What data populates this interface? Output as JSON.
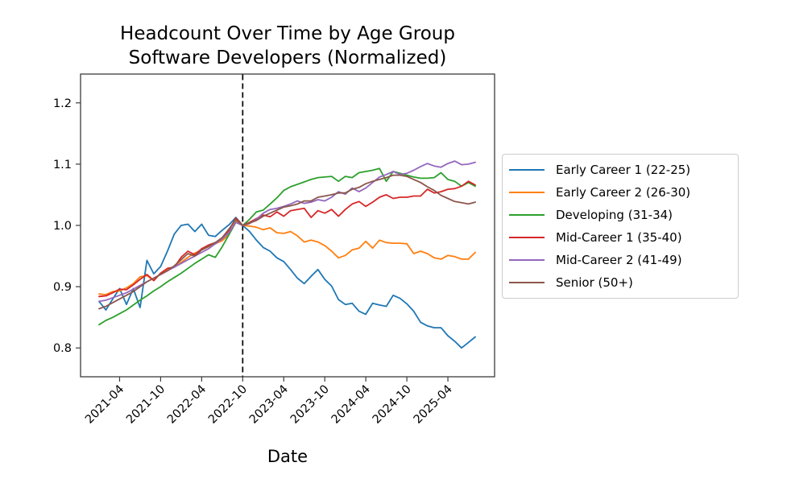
{
  "figure": {
    "title_line1": "Headcount Over Time by Age Group",
    "title_line2": "Software Developers (Normalized)",
    "xlabel": "Date"
  },
  "chart_data": {
    "type": "line",
    "title": "Headcount Over Time by Age Group — Software Developers (Normalized)",
    "xlabel": "Date",
    "ylabel": "",
    "grid": false,
    "legend_position": "center right",
    "ylim": [
      0.753,
      1.247
    ],
    "yticks": [
      0.8,
      0.9,
      1.0,
      1.1,
      1.2
    ],
    "ytick_labels": [
      "0.8",
      "0.9",
      "1.0",
      "1.1",
      "1.2"
    ],
    "xtick_labels": [
      "2021-04",
      "2021-10",
      "2022-04",
      "2022-10",
      "2023-04",
      "2023-10",
      "2024-04",
      "2024-10",
      "2025-04"
    ],
    "vline": {
      "month": "2022-10",
      "style": "dashed",
      "color": "#000000"
    },
    "x": [
      "2021-01",
      "2021-02",
      "2021-03",
      "2021-04",
      "2021-05",
      "2021-06",
      "2021-07",
      "2021-08",
      "2021-09",
      "2021-10",
      "2021-11",
      "2021-12",
      "2022-01",
      "2022-02",
      "2022-03",
      "2022-04",
      "2022-05",
      "2022-06",
      "2022-07",
      "2022-08",
      "2022-09",
      "2022-10",
      "2022-11",
      "2022-12",
      "2023-01",
      "2023-02",
      "2023-03",
      "2023-04",
      "2023-05",
      "2023-06",
      "2023-07",
      "2023-08",
      "2023-09",
      "2023-10",
      "2023-11",
      "2023-12",
      "2024-01",
      "2024-02",
      "2024-03",
      "2024-04",
      "2024-05",
      "2024-06",
      "2024-07",
      "2024-08",
      "2024-09",
      "2024-10",
      "2024-11",
      "2024-12",
      "2025-01",
      "2025-02",
      "2025-03",
      "2025-04",
      "2025-05",
      "2025-06",
      "2025-07",
      "2025-08"
    ],
    "series": [
      {
        "name": "Early Career 1 (22-25)",
        "color": "#1f77b4",
        "values": [
          0.876,
          0.862,
          0.88,
          0.897,
          0.871,
          0.897,
          0.866,
          0.943,
          0.921,
          0.933,
          0.958,
          0.986,
          1.0,
          1.002,
          0.99,
          1.002,
          0.984,
          0.982,
          0.992,
          1.001,
          1.013,
          1.0,
          0.99,
          0.976,
          0.964,
          0.958,
          0.947,
          0.941,
          0.928,
          0.914,
          0.905,
          0.917,
          0.928,
          0.912,
          0.901,
          0.879,
          0.871,
          0.873,
          0.86,
          0.855,
          0.873,
          0.87,
          0.868,
          0.886,
          0.881,
          0.872,
          0.86,
          0.842,
          0.836,
          0.833,
          0.833,
          0.82,
          0.811,
          0.8,
          0.809,
          0.818
        ]
      },
      {
        "name": "Early Career 2 (26-30)",
        "color": "#ff7f0e",
        "values": [
          0.888,
          0.887,
          0.892,
          0.893,
          0.898,
          0.905,
          0.916,
          0.918,
          0.91,
          0.922,
          0.928,
          0.932,
          0.94,
          0.948,
          0.955,
          0.96,
          0.965,
          0.97,
          0.975,
          0.985,
          1.008,
          1.0,
          0.999,
          0.997,
          0.993,
          0.996,
          0.988,
          0.987,
          0.99,
          0.983,
          0.973,
          0.976,
          0.973,
          0.967,
          0.958,
          0.947,
          0.951,
          0.96,
          0.963,
          0.974,
          0.963,
          0.976,
          0.972,
          0.971,
          0.971,
          0.97,
          0.954,
          0.958,
          0.954,
          0.947,
          0.945,
          0.951,
          0.949,
          0.945,
          0.945,
          0.956
        ]
      },
      {
        "name": "Developing (31-34)",
        "color": "#2ca02c",
        "values": [
          0.838,
          0.845,
          0.85,
          0.856,
          0.862,
          0.87,
          0.878,
          0.885,
          0.893,
          0.9,
          0.908,
          0.915,
          0.922,
          0.93,
          0.938,
          0.945,
          0.952,
          0.948,
          0.965,
          0.985,
          1.005,
          1.0,
          1.01,
          1.022,
          1.025,
          1.035,
          1.045,
          1.057,
          1.063,
          1.067,
          1.071,
          1.075,
          1.078,
          1.079,
          1.08,
          1.072,
          1.08,
          1.078,
          1.086,
          1.088,
          1.09,
          1.093,
          1.072,
          1.088,
          1.085,
          1.082,
          1.079,
          1.077,
          1.077,
          1.078,
          1.086,
          1.075,
          1.072,
          1.064,
          1.07,
          1.064
        ]
      },
      {
        "name": "Mid-Career 1 (35-40)",
        "color": "#d62728",
        "values": [
          0.884,
          0.885,
          0.89,
          0.896,
          0.895,
          0.903,
          0.912,
          0.92,
          0.91,
          0.922,
          0.93,
          0.932,
          0.948,
          0.958,
          0.952,
          0.962,
          0.968,
          0.972,
          0.978,
          0.992,
          1.012,
          1.0,
          1.005,
          1.011,
          1.017,
          1.014,
          1.022,
          1.015,
          1.024,
          1.026,
          1.028,
          1.013,
          1.024,
          1.02,
          1.026,
          1.015,
          1.026,
          1.035,
          1.039,
          1.031,
          1.038,
          1.046,
          1.05,
          1.044,
          1.046,
          1.046,
          1.048,
          1.048,
          1.059,
          1.053,
          1.055,
          1.059,
          1.06,
          1.064,
          1.072,
          1.066
        ]
      },
      {
        "name": "Mid-Career 2 (41-49)",
        "color": "#9467bd",
        "values": [
          0.876,
          0.878,
          0.882,
          0.886,
          0.89,
          0.896,
          0.902,
          0.908,
          0.914,
          0.92,
          0.926,
          0.932,
          0.938,
          0.944,
          0.95,
          0.956,
          0.962,
          0.97,
          0.978,
          0.988,
          1.005,
          1.0,
          1.003,
          1.01,
          1.02,
          1.026,
          1.028,
          1.031,
          1.035,
          1.04,
          1.036,
          1.038,
          1.042,
          1.04,
          1.046,
          1.055,
          1.051,
          1.061,
          1.055,
          1.061,
          1.07,
          1.079,
          1.083,
          1.088,
          1.083,
          1.085,
          1.09,
          1.096,
          1.101,
          1.097,
          1.095,
          1.101,
          1.105,
          1.099,
          1.1,
          1.103
        ]
      },
      {
        "name": "Senior (50+)",
        "color": "#8c564b",
        "values": [
          0.864,
          0.868,
          0.874,
          0.88,
          0.886,
          0.892,
          0.9,
          0.908,
          0.914,
          0.92,
          0.926,
          0.934,
          0.944,
          0.954,
          0.95,
          0.96,
          0.966,
          0.972,
          0.98,
          0.994,
          1.01,
          1.0,
          1.004,
          1.008,
          1.015,
          1.02,
          1.025,
          1.03,
          1.032,
          1.035,
          1.04,
          1.04,
          1.046,
          1.048,
          1.05,
          1.053,
          1.053,
          1.059,
          1.062,
          1.068,
          1.072,
          1.075,
          1.078,
          1.082,
          1.082,
          1.08,
          1.075,
          1.07,
          1.063,
          1.057,
          1.049,
          1.044,
          1.039,
          1.037,
          1.035,
          1.038
        ]
      }
    ]
  }
}
